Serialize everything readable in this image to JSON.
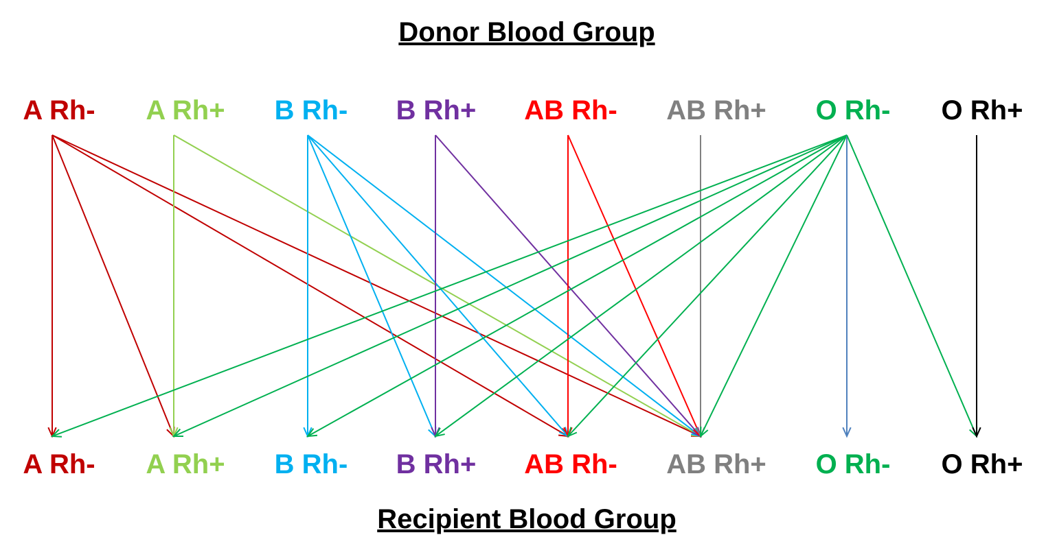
{
  "titles": {
    "donor": "Donor Blood Group",
    "recipient": "Recipient Blood Group"
  },
  "groups": [
    {
      "id": "a-neg",
      "label": "A Rh-",
      "color": "#c00000"
    },
    {
      "id": "a-pos",
      "label": "A Rh+",
      "color": "#92d050"
    },
    {
      "id": "b-neg",
      "label": "B Rh-",
      "color": "#00b0f0"
    },
    {
      "id": "b-pos",
      "label": "B Rh+",
      "color": "#7030a0"
    },
    {
      "id": "ab-neg",
      "label": "AB Rh-",
      "color": "#ff0000"
    },
    {
      "id": "ab-pos",
      "label": "AB Rh+",
      "color": "#808080"
    },
    {
      "id": "o-neg",
      "label": "O Rh-",
      "color": "#00b050"
    },
    {
      "id": "o-pos",
      "label": "O Rh+",
      "color": "#000000"
    }
  ],
  "transfusions": [
    {
      "donor": "a-neg",
      "recipient": "a-neg"
    },
    {
      "donor": "a-neg",
      "recipient": "a-pos"
    },
    {
      "donor": "a-neg",
      "recipient": "ab-neg"
    },
    {
      "donor": "a-neg",
      "recipient": "ab-pos"
    },
    {
      "donor": "a-pos",
      "recipient": "a-pos"
    },
    {
      "donor": "a-pos",
      "recipient": "ab-pos"
    },
    {
      "donor": "b-neg",
      "recipient": "b-neg"
    },
    {
      "donor": "b-neg",
      "recipient": "b-pos"
    },
    {
      "donor": "b-neg",
      "recipient": "ab-neg"
    },
    {
      "donor": "b-neg",
      "recipient": "ab-pos"
    },
    {
      "donor": "b-pos",
      "recipient": "b-pos"
    },
    {
      "donor": "b-pos",
      "recipient": "ab-pos"
    },
    {
      "donor": "ab-neg",
      "recipient": "ab-neg"
    },
    {
      "donor": "ab-neg",
      "recipient": "ab-pos"
    },
    {
      "donor": "ab-pos",
      "recipient": "ab-pos"
    },
    {
      "donor": "o-neg",
      "recipient": "a-neg"
    },
    {
      "donor": "o-neg",
      "recipient": "a-pos"
    },
    {
      "donor": "o-neg",
      "recipient": "b-neg"
    },
    {
      "donor": "o-neg",
      "recipient": "b-pos"
    },
    {
      "donor": "o-neg",
      "recipient": "ab-neg"
    },
    {
      "donor": "o-neg",
      "recipient": "ab-pos"
    },
    {
      "donor": "o-neg",
      "recipient": "o-neg",
      "color": "#4f81bd"
    },
    {
      "donor": "o-neg",
      "recipient": "o-pos"
    },
    {
      "donor": "o-pos",
      "recipient": "o-pos"
    }
  ]
}
